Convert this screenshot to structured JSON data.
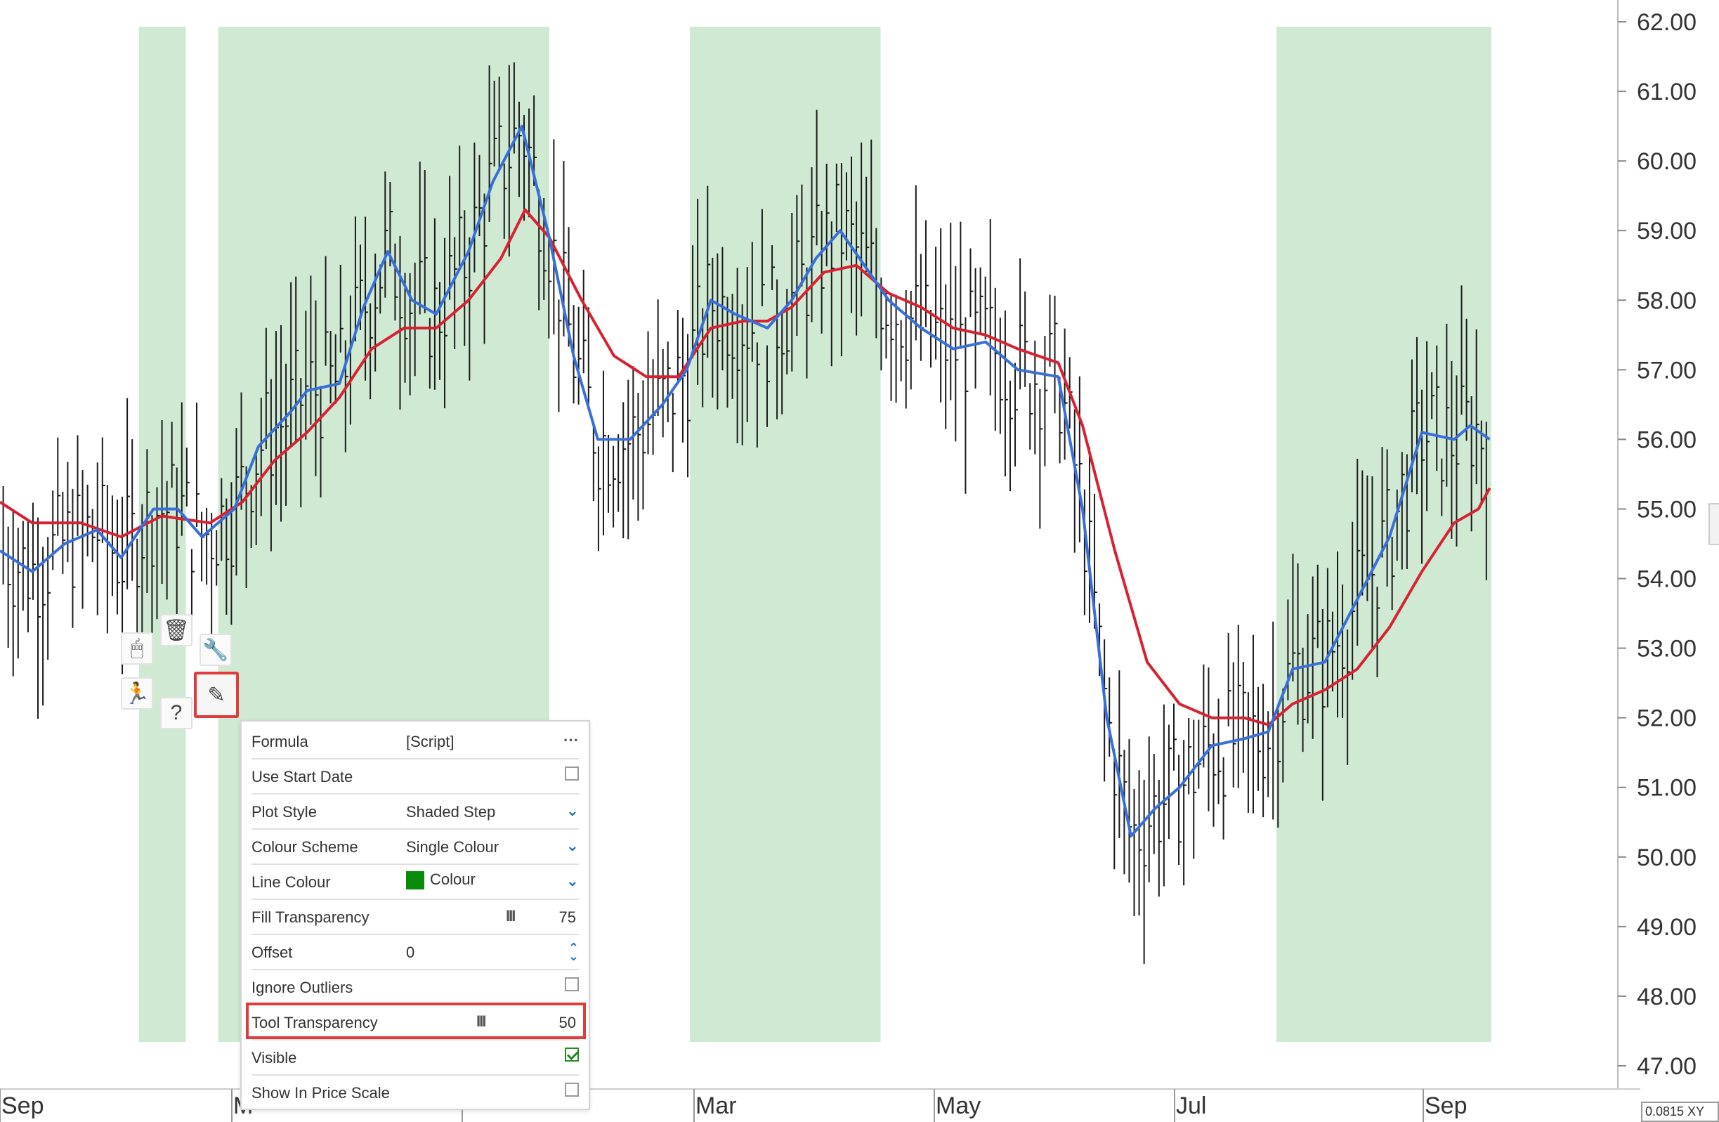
{
  "chart_data": {
    "type": "ohlc",
    "y_ticks": [
      "62.00",
      "61.00",
      "60.00",
      "59.00",
      "58.00",
      "57.00",
      "56.00",
      "55.00",
      "54.00",
      "53.00",
      "52.00",
      "51.00",
      "50.00",
      "49.00",
      "48.00",
      "47.00"
    ],
    "ylim": [
      46.8,
      62.1
    ],
    "x_labels": [
      "Sep",
      "M",
      "Mar",
      "May",
      "Jul",
      "Sep"
    ],
    "shaded_regions": [
      [
        0.086,
        0.115
      ],
      [
        0.135,
        0.34
      ],
      [
        0.427,
        0.545
      ],
      [
        0.79,
        0.923
      ]
    ],
    "series": [
      {
        "name": "",
        "color": "#d62232"
      },
      {
        "name": "",
        "color": "#3a6fd8"
      }
    ],
    "key_points": {
      "red": [
        [
          0.0,
          55.1
        ],
        [
          0.02,
          54.8
        ],
        [
          0.05,
          54.8
        ],
        [
          0.075,
          54.6
        ],
        [
          0.1,
          54.9
        ],
        [
          0.13,
          54.8
        ],
        [
          0.15,
          55.1
        ],
        [
          0.17,
          55.7
        ],
        [
          0.19,
          56.1
        ],
        [
          0.21,
          56.6
        ],
        [
          0.23,
          57.3
        ],
        [
          0.25,
          57.6
        ],
        [
          0.27,
          57.6
        ],
        [
          0.29,
          58.0
        ],
        [
          0.31,
          58.6
        ],
        [
          0.325,
          59.3
        ],
        [
          0.34,
          58.9
        ],
        [
          0.36,
          58.0
        ],
        [
          0.38,
          57.2
        ],
        [
          0.4,
          56.9
        ],
        [
          0.42,
          56.9
        ],
        [
          0.44,
          57.6
        ],
        [
          0.46,
          57.7
        ],
        [
          0.475,
          57.7
        ],
        [
          0.49,
          57.9
        ],
        [
          0.51,
          58.4
        ],
        [
          0.53,
          58.5
        ],
        [
          0.55,
          58.1
        ],
        [
          0.57,
          57.9
        ],
        [
          0.59,
          57.6
        ],
        [
          0.61,
          57.5
        ],
        [
          0.63,
          57.3
        ],
        [
          0.655,
          57.1
        ],
        [
          0.67,
          56.2
        ],
        [
          0.69,
          54.4
        ],
        [
          0.71,
          52.8
        ],
        [
          0.73,
          52.2
        ],
        [
          0.75,
          52.0
        ],
        [
          0.77,
          52.0
        ],
        [
          0.785,
          51.9
        ],
        [
          0.8,
          52.2
        ],
        [
          0.82,
          52.4
        ],
        [
          0.84,
          52.7
        ],
        [
          0.86,
          53.3
        ],
        [
          0.88,
          54.1
        ],
        [
          0.9,
          54.8
        ],
        [
          0.915,
          55.0
        ],
        [
          0.922,
          55.3
        ]
      ],
      "blue": [
        [
          0.0,
          54.4
        ],
        [
          0.02,
          54.1
        ],
        [
          0.04,
          54.5
        ],
        [
          0.06,
          54.7
        ],
        [
          0.075,
          54.3
        ],
        [
          0.095,
          55.0
        ],
        [
          0.11,
          55.0
        ],
        [
          0.125,
          54.6
        ],
        [
          0.145,
          55.0
        ],
        [
          0.16,
          55.9
        ],
        [
          0.18,
          56.4
        ],
        [
          0.19,
          56.7
        ],
        [
          0.21,
          56.8
        ],
        [
          0.225,
          57.9
        ],
        [
          0.24,
          58.7
        ],
        [
          0.255,
          58.0
        ],
        [
          0.27,
          57.8
        ],
        [
          0.29,
          58.7
        ],
        [
          0.305,
          59.7
        ],
        [
          0.323,
          60.5
        ],
        [
          0.34,
          58.9
        ],
        [
          0.355,
          57.2
        ],
        [
          0.37,
          56.0
        ],
        [
          0.39,
          56.0
        ],
        [
          0.41,
          56.5
        ],
        [
          0.425,
          57.0
        ],
        [
          0.44,
          58.0
        ],
        [
          0.455,
          57.8
        ],
        [
          0.475,
          57.6
        ],
        [
          0.49,
          58.0
        ],
        [
          0.505,
          58.6
        ],
        [
          0.52,
          59.0
        ],
        [
          0.535,
          58.5
        ],
        [
          0.55,
          58.0
        ],
        [
          0.57,
          57.6
        ],
        [
          0.59,
          57.3
        ],
        [
          0.61,
          57.4
        ],
        [
          0.63,
          57.0
        ],
        [
          0.655,
          56.9
        ],
        [
          0.67,
          55.0
        ],
        [
          0.685,
          52.0
        ],
        [
          0.7,
          50.3
        ],
        [
          0.715,
          50.7
        ],
        [
          0.73,
          51.0
        ],
        [
          0.75,
          51.6
        ],
        [
          0.77,
          51.7
        ],
        [
          0.785,
          51.8
        ],
        [
          0.8,
          52.7
        ],
        [
          0.82,
          52.8
        ],
        [
          0.84,
          53.7
        ],
        [
          0.86,
          54.6
        ],
        [
          0.88,
          56.1
        ],
        [
          0.9,
          56.0
        ],
        [
          0.91,
          56.2
        ],
        [
          0.922,
          56.0
        ]
      ]
    }
  },
  "tools": {
    "items": [
      {
        "name": "mouse-icon",
        "glyph": "🖱"
      },
      {
        "name": "trash-icon",
        "glyph": "🗑"
      },
      {
        "name": "wrench-icon",
        "glyph": "🔧"
      },
      {
        "name": "run-icon",
        "glyph": "🏃"
      },
      {
        "name": "help-icon",
        "glyph": "?"
      },
      {
        "name": "pencil-icon",
        "glyph": "✎"
      }
    ]
  },
  "panel": {
    "formula": {
      "label": "Formula",
      "value": "[Script]",
      "ctl": "···"
    },
    "use_start_date": {
      "label": "Use Start Date",
      "checked": false
    },
    "plot_style": {
      "label": "Plot Style",
      "value": "Shaded Step"
    },
    "colour_scheme": {
      "label": "Colour Scheme",
      "value": "Single Colour"
    },
    "line_colour": {
      "label": "Line Colour",
      "value": "Colour",
      "swatch": "#0a8a0a"
    },
    "fill_transparency": {
      "label": "Fill Transparency",
      "value": "75",
      "bars": "III"
    },
    "offset": {
      "label": "Offset",
      "value": "0"
    },
    "ignore_outliers": {
      "label": "Ignore Outliers",
      "checked": false
    },
    "tool_transparency": {
      "label": "Tool Transparency",
      "value": "50",
      "bars": "III"
    },
    "visible": {
      "label": "Visible",
      "checked": true
    },
    "show_in_price_scale": {
      "label": "Show In Price Scale",
      "checked": false
    }
  },
  "xy_readout": "0.0815 XY"
}
